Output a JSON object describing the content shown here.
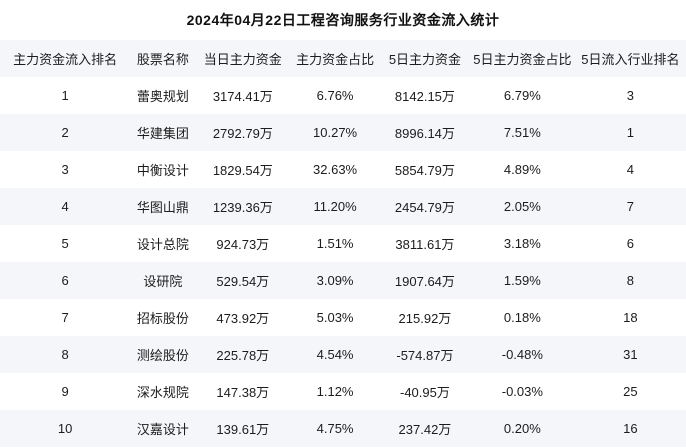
{
  "chart_data": {
    "type": "table",
    "title": "2024年04月22日工程咨询服务行业资金流入统计",
    "columns": [
      "主力资金流入排名",
      "股票名称",
      "当日主力资金",
      "主力资金占比",
      "5日主力资金",
      "5日主力资金占比",
      "5日流入行业排名"
    ],
    "rows": [
      [
        "1",
        "蕾奥规划",
        "3174.41万",
        "6.76%",
        "8142.15万",
        "6.79%",
        "3"
      ],
      [
        "2",
        "华建集团",
        "2792.79万",
        "10.27%",
        "8996.14万",
        "7.51%",
        "1"
      ],
      [
        "3",
        "中衡设计",
        "1829.54万",
        "32.63%",
        "5854.79万",
        "4.89%",
        "4"
      ],
      [
        "4",
        "华图山鼎",
        "1239.36万",
        "11.20%",
        "2454.79万",
        "2.05%",
        "7"
      ],
      [
        "5",
        "设计总院",
        "924.73万",
        "1.51%",
        "3811.61万",
        "3.18%",
        "6"
      ],
      [
        "6",
        "设研院",
        "529.54万",
        "3.09%",
        "1907.64万",
        "1.59%",
        "8"
      ],
      [
        "7",
        "招标股份",
        "473.92万",
        "5.03%",
        "215.92万",
        "0.18%",
        "18"
      ],
      [
        "8",
        "测绘股份",
        "225.78万",
        "4.54%",
        "-574.87万",
        "-0.48%",
        "31"
      ],
      [
        "9",
        "深水规院",
        "147.38万",
        "1.12%",
        "-40.95万",
        "-0.03%",
        "25"
      ],
      [
        "10",
        "汉嘉设计",
        "139.61万",
        "4.75%",
        "237.42万",
        "0.20%",
        "16"
      ]
    ],
    "layout": {
      "stripe_color": "#f5f6fa",
      "text_color": "#1c1c1c",
      "background_color": "#ffffff",
      "grid": "off",
      "column_keys": [
        "rank",
        "stock-name",
        "today-main-capital",
        "main-capital-ratio",
        "5d-main-capital",
        "5d-main-capital-ratio",
        "5d-industry-rank"
      ]
    }
  }
}
